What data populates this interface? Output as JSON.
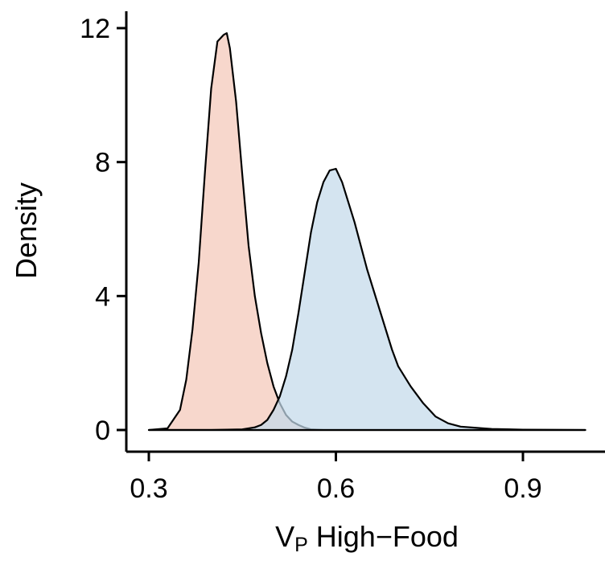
{
  "chart_data": {
    "type": "area",
    "title": "",
    "xlabel": {
      "main": "V",
      "subscript": "P",
      "rest": " High−Food"
    },
    "ylabel": "Density",
    "xlim": [
      0.27,
      1.02
    ],
    "ylim": [
      0,
      12.6
    ],
    "xticks": [
      0.3,
      0.6,
      0.9
    ],
    "xtick_labels": [
      "0.3",
      "0.6",
      "0.9"
    ],
    "yticks": [
      0,
      4,
      8,
      12
    ],
    "ytick_labels": [
      "0",
      "4",
      "8",
      "12"
    ],
    "grid": false,
    "legend": "none",
    "series": [
      {
        "color": "#f4c8b8",
        "x": [
          0.3,
          0.33,
          0.35,
          0.36,
          0.37,
          0.38,
          0.39,
          0.4,
          0.41,
          0.42,
          0.425,
          0.43,
          0.44,
          0.45,
          0.46,
          0.47,
          0.48,
          0.49,
          0.5,
          0.51,
          0.52,
          0.53,
          0.54,
          0.55,
          0.56,
          0.57,
          0.58,
          0.6,
          1.0
        ],
        "y": [
          0,
          0.05,
          0.6,
          1.5,
          3.0,
          5.0,
          7.7,
          10.2,
          11.6,
          11.8,
          11.85,
          11.4,
          9.8,
          7.6,
          5.5,
          4.0,
          2.9,
          2.0,
          1.3,
          0.8,
          0.45,
          0.25,
          0.15,
          0.07,
          0.02,
          0.01,
          0,
          0,
          0
        ]
      },
      {
        "color": "#c3d9ea",
        "x": [
          0.3,
          0.4,
          0.45,
          0.47,
          0.48,
          0.49,
          0.5,
          0.51,
          0.52,
          0.53,
          0.54,
          0.55,
          0.56,
          0.57,
          0.58,
          0.59,
          0.6,
          0.61,
          0.62,
          0.63,
          0.64,
          0.65,
          0.66,
          0.67,
          0.68,
          0.69,
          0.7,
          0.72,
          0.74,
          0.76,
          0.78,
          0.8,
          0.85,
          0.9,
          1.0
        ],
        "y": [
          0,
          0,
          0.02,
          0.08,
          0.15,
          0.3,
          0.6,
          1.0,
          1.6,
          2.4,
          3.5,
          4.7,
          5.9,
          6.8,
          7.4,
          7.75,
          7.8,
          7.4,
          6.8,
          6.2,
          5.5,
          4.8,
          4.2,
          3.6,
          3.0,
          2.4,
          1.9,
          1.3,
          0.8,
          0.4,
          0.2,
          0.1,
          0.03,
          0.01,
          0
        ]
      }
    ]
  }
}
